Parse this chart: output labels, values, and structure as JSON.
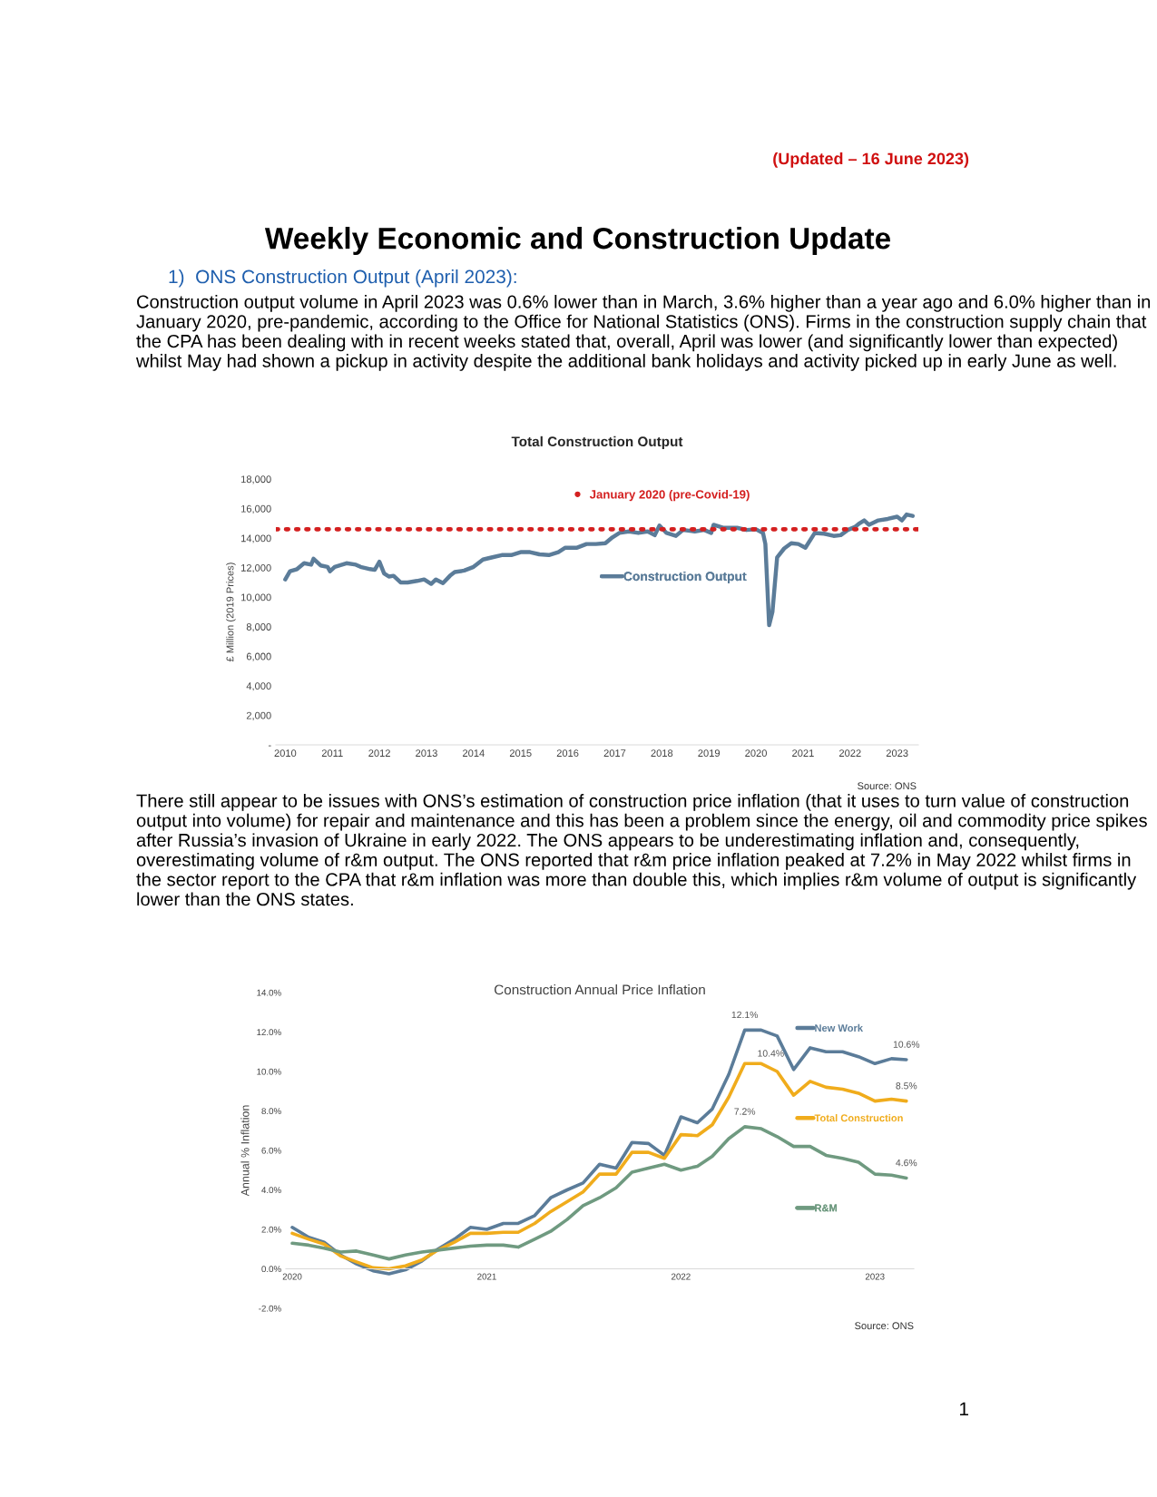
{
  "chart_data": [
    {
      "type": "line",
      "title": "Total Construction Output",
      "ylabel": "£ Million (2019 Prices)",
      "x": [
        2010.0,
        2010.1,
        2010.25,
        2010.4,
        2010.55,
        2010.6,
        2010.75,
        2010.9,
        2010.95,
        2011.05,
        2011.3,
        2011.5,
        2011.6,
        2011.8,
        2011.9,
        2012.0,
        2012.1,
        2012.2,
        2012.3,
        2012.45,
        2012.6,
        2012.8,
        2012.95,
        2013.1,
        2013.2,
        2013.35,
        2013.5,
        2013.6,
        2013.8,
        2014.0,
        2014.2,
        2014.4,
        2014.6,
        2014.8,
        2015.0,
        2015.2,
        2015.4,
        2015.6,
        2015.8,
        2015.95,
        2016.2,
        2016.4,
        2016.6,
        2016.8,
        2016.95,
        2017.1,
        2017.3,
        2017.5,
        2017.7,
        2017.85,
        2017.95,
        2018.1,
        2018.3,
        2018.45,
        2018.7,
        2018.9,
        2019.05,
        2019.1,
        2019.3,
        2019.6,
        2019.8,
        2020.0,
        2020.15,
        2020.2,
        2020.28,
        2020.35,
        2020.45,
        2020.6,
        2020.75,
        2020.9,
        2021.05,
        2021.25,
        2021.45,
        2021.65,
        2021.8,
        2021.95,
        2022.1,
        2022.2,
        2022.3,
        2022.4,
        2022.6,
        2022.8,
        2023.0,
        2023.1,
        2023.2,
        2023.33
      ],
      "series": [
        {
          "name": "Construction Output",
          "color": "#5b7c99",
          "values": [
            11200,
            11750,
            11900,
            12300,
            12200,
            12600,
            12150,
            12050,
            11750,
            12050,
            12300,
            12200,
            12050,
            11900,
            11850,
            12400,
            11600,
            11400,
            11450,
            11000,
            11000,
            11100,
            11200,
            10900,
            11200,
            10950,
            11450,
            11700,
            11800,
            12050,
            12550,
            12700,
            12850,
            12850,
            13050,
            13050,
            12900,
            12850,
            13050,
            13350,
            13350,
            13600,
            13600,
            13650,
            14050,
            14350,
            14450,
            14350,
            14450,
            14200,
            14850,
            14350,
            14150,
            14550,
            14450,
            14550,
            14350,
            14900,
            14700,
            14700,
            14550,
            14600,
            14350,
            13600,
            8100,
            9000,
            12700,
            13300,
            13650,
            13600,
            13350,
            14350,
            14300,
            14150,
            14200,
            14550,
            14750,
            15000,
            15200,
            14900,
            15200,
            15300,
            15450,
            15200,
            15600,
            15500
          ]
        }
      ],
      "xlim": [
        2009.8,
        2023.45
      ],
      "xticks": [
        2010,
        2011,
        2012,
        2013,
        2014,
        2015,
        2016,
        2017,
        2018,
        2019,
        2020,
        2021,
        2022,
        2023
      ],
      "ylim": [
        0,
        18000
      ],
      "yticks": [
        {
          "value": 0,
          "label": "-"
        },
        {
          "value": 2000,
          "label": "2,000"
        },
        {
          "value": 4000,
          "label": "4,000"
        },
        {
          "value": 6000,
          "label": "6,000"
        },
        {
          "value": 8000,
          "label": "8,000"
        },
        {
          "value": 10000,
          "label": "10,000"
        },
        {
          "value": 12000,
          "label": "12,000"
        },
        {
          "value": 14000,
          "label": "14,000"
        },
        {
          "value": 16000,
          "label": "16,000"
        },
        {
          "value": 18000,
          "label": "18,000"
        }
      ],
      "ref_lines": [
        {
          "axis": "y",
          "value": 14600,
          "label": "January 2020 (pre-Covid-19)",
          "color": "#d42020",
          "line_style": "dotted"
        }
      ],
      "legend": "center",
      "grid": false,
      "marker": "none",
      "line_style": "solid",
      "annotations": [
        "(Updated – 16 June 2023)",
        "Weekly Economic and Construction Update",
        "1)  ONS Construction Output (April 2023):",
        "Construction output volume in April 2023 was 0.6% lower than in March, 3.6% higher than a year ago and 6.0% higher than in January 2020, pre-pandemic, according to the Office for National Statistics (ONS). Firms in the construction supply chain that the CPA has been dealing with in recent weeks stated that, overall, April was lower (and significantly lower than expected) whilst May had shown a pickup in activity despite the additional bank holidays and activity picked up in early June as well.",
        "Source: ONS"
      ]
    },
    {
      "type": "line",
      "title": "Construction Annual Price Inflation",
      "ylabel": "Annual % Inflation",
      "x": [
        "2020-01",
        "2020-02",
        "2020-03",
        "2020-04",
        "2020-05",
        "2020-06",
        "2020-07",
        "2020-08",
        "2020-09",
        "2020-10",
        "2020-11",
        "2020-12",
        "2021-01",
        "2021-02",
        "2021-03",
        "2021-04",
        "2021-05",
        "2021-06",
        "2021-07",
        "2021-08",
        "2021-09",
        "2021-10",
        "2021-11",
        "2021-12",
        "2022-01",
        "2022-02",
        "2022-03",
        "2022-04",
        "2022-05",
        "2022-06",
        "2022-07",
        "2022-08",
        "2022-09",
        "2022-10",
        "2022-11",
        "2022-12",
        "2023-01",
        "2023-02",
        "2023-03"
      ],
      "series": [
        {
          "name": "New Work",
          "color": "#5b7c99",
          "values": [
            2.1,
            1.6,
            1.35,
            0.7,
            0.25,
            -0.1,
            -0.25,
            -0.05,
            0.4,
            1.0,
            1.5,
            2.1,
            2.0,
            2.3,
            2.3,
            2.7,
            3.6,
            4.0,
            4.35,
            5.3,
            5.1,
            6.4,
            6.35,
            5.75,
            7.7,
            7.4,
            8.1,
            9.85,
            12.1,
            12.1,
            11.8,
            10.1,
            11.2,
            11.0,
            11.0,
            10.75,
            10.4,
            10.65,
            10.6
          ]
        },
        {
          "name": "Total Construction",
          "color": "#f0ac1c",
          "values": [
            1.8,
            1.5,
            1.25,
            0.65,
            0.35,
            0.05,
            0.0,
            0.15,
            0.45,
            0.95,
            1.35,
            1.8,
            1.8,
            1.85,
            1.85,
            2.3,
            2.9,
            3.4,
            3.9,
            4.8,
            4.8,
            5.9,
            5.9,
            5.6,
            6.8,
            6.75,
            7.3,
            8.7,
            10.4,
            10.4,
            10.0,
            8.8,
            9.5,
            9.2,
            9.1,
            8.9,
            8.5,
            8.6,
            8.5
          ]
        },
        {
          "name": "R&M",
          "color": "#6f9a80",
          "values": [
            1.3,
            1.2,
            1.05,
            0.85,
            0.9,
            0.7,
            0.5,
            0.7,
            0.85,
            0.95,
            1.05,
            1.15,
            1.2,
            1.2,
            1.1,
            1.5,
            1.9,
            2.5,
            3.2,
            3.6,
            4.1,
            4.9,
            5.1,
            5.3,
            5.0,
            5.2,
            5.7,
            6.6,
            7.2,
            7.1,
            6.7,
            6.2,
            6.2,
            5.75,
            5.6,
            5.4,
            4.8,
            4.75,
            4.6
          ]
        }
      ],
      "xlim": [
        "2019-12-20",
        "2023-03-15"
      ],
      "xticks": [
        {
          "value": "2020-01-01",
          "label": "2020"
        },
        {
          "value": "2021-01-01",
          "label": "2021"
        },
        {
          "value": "2022-01-01",
          "label": "2022"
        },
        {
          "value": "2023-01-01",
          "label": "2023"
        }
      ],
      "ylim": [
        -2,
        14
      ],
      "yticks": [
        {
          "value": -2,
          "label": "-2.0%"
        },
        {
          "value": 0,
          "label": "0.0%"
        },
        {
          "value": 2,
          "label": "2.0%"
        },
        {
          "value": 4,
          "label": "4.0%"
        },
        {
          "value": 6,
          "label": "6.0%"
        },
        {
          "value": 8,
          "label": "8.0%"
        },
        {
          "value": 10,
          "label": "10.0%"
        },
        {
          "value": 12,
          "label": "12.0%"
        },
        {
          "value": 14,
          "label": "14.0%"
        }
      ],
      "legend": "right",
      "grid": false,
      "marker": "none",
      "line_style": "solid",
      "annotations": [
        "There still appear to be issues with ONS’s estimation of construction price inflation (that it uses to turn value of construction output into volume) for repair and maintenance and this has been a problem since the energy, oil and commodity price spikes after Russia’s invasion of Ukraine in early 2022. The ONS appears to be underestimating inflation and, consequently, overestimating volume of r&m output. The ONS reported that r&m price inflation peaked at 7.2% in May 2022 whilst firms in the sector report to the CPA that r&m inflation was more than double this, which implies r&m volume of output is significantly lower than the ONS states.",
        "Source: ONS",
        "1",
        {
          "text": "12.1%",
          "x": "2022-05",
          "y": 12.1
        },
        {
          "text": "10.6%",
          "x": "2023-03",
          "y": 10.6
        },
        {
          "text": "10.4%",
          "x": "2022-05",
          "y": 10.4
        },
        {
          "text": "8.5%",
          "x": "2023-03",
          "y": 8.5
        },
        {
          "text": "7.2%",
          "x": "2022-05",
          "y": 7.2
        },
        {
          "text": "4.6%",
          "x": "2023-03",
          "y": 4.6
        }
      ]
    }
  ]
}
